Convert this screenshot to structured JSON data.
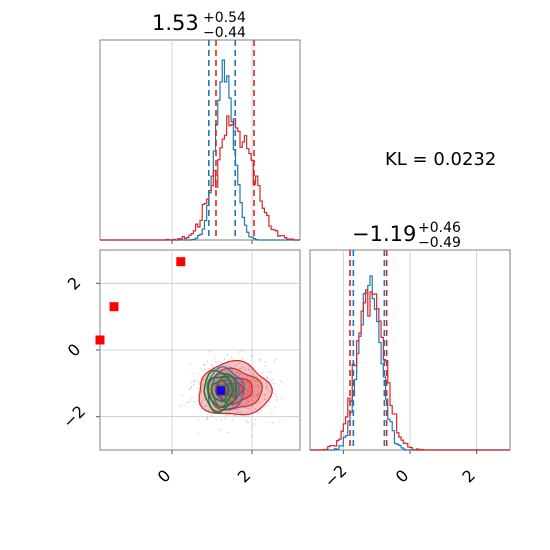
{
  "chart_data": [
    {
      "type": "histogram",
      "panel": "marginal-x",
      "title_value": "1.53",
      "title_plus": "+0.54",
      "title_minus": "−0.44",
      "xlim": [
        -1.8,
        3.2
      ],
      "grid": true,
      "series": [
        {
          "color": "#1f77b4",
          "center": 1.32,
          "sigma": 0.23,
          "quantile_lines": [
            0.92,
            1.58
          ]
        },
        {
          "color": "#d62728",
          "center": 1.55,
          "sigma": 0.45,
          "quantile_lines": [
            1.1,
            2.05
          ]
        }
      ]
    },
    {
      "type": "histogram",
      "panel": "marginal-y",
      "title_value": "−1.19",
      "title_plus": "+0.46",
      "title_minus": "−0.49",
      "xlim": [
        -3.0,
        3.0
      ],
      "xticks": [
        "−2",
        "0",
        "2"
      ],
      "grid": true,
      "series": [
        {
          "color": "#1f77b4",
          "center": -1.2,
          "sigma": 0.32,
          "quantile_lines": [
            -1.7,
            -0.77
          ]
        },
        {
          "color": "#d62728",
          "center": -1.19,
          "sigma": 0.4,
          "quantile_lines": [
            -1.8,
            -0.7
          ]
        }
      ]
    },
    {
      "type": "scatter-contour",
      "panel": "joint",
      "xlim": [
        -1.8,
        3.2
      ],
      "ylim": [
        -3.0,
        3.0
      ],
      "xticks": [
        "0",
        "2"
      ],
      "yticks": [
        "−2",
        "0",
        "2"
      ],
      "grid": true,
      "red_markers": [
        [
          0.22,
          2.65
        ],
        [
          -1.45,
          1.3
        ],
        [
          -1.8,
          0.3
        ],
        [
          1.22,
          -1.22
        ]
      ],
      "blue_marker": [
        1.22,
        -1.22
      ],
      "contours": [
        {
          "color": "#d62728",
          "cx": 1.55,
          "cy": -1.19,
          "rx": 0.45,
          "ry": 0.4
        },
        {
          "color": "#1f77b4",
          "cx": 1.32,
          "cy": -1.2,
          "rx": 0.23,
          "ry": 0.32
        },
        {
          "color": "#2a7a1e",
          "cx": 1.2,
          "cy": -1.22,
          "rx": 0.2,
          "ry": 0.3
        }
      ]
    }
  ],
  "kl_label": "KL = 0.0232"
}
